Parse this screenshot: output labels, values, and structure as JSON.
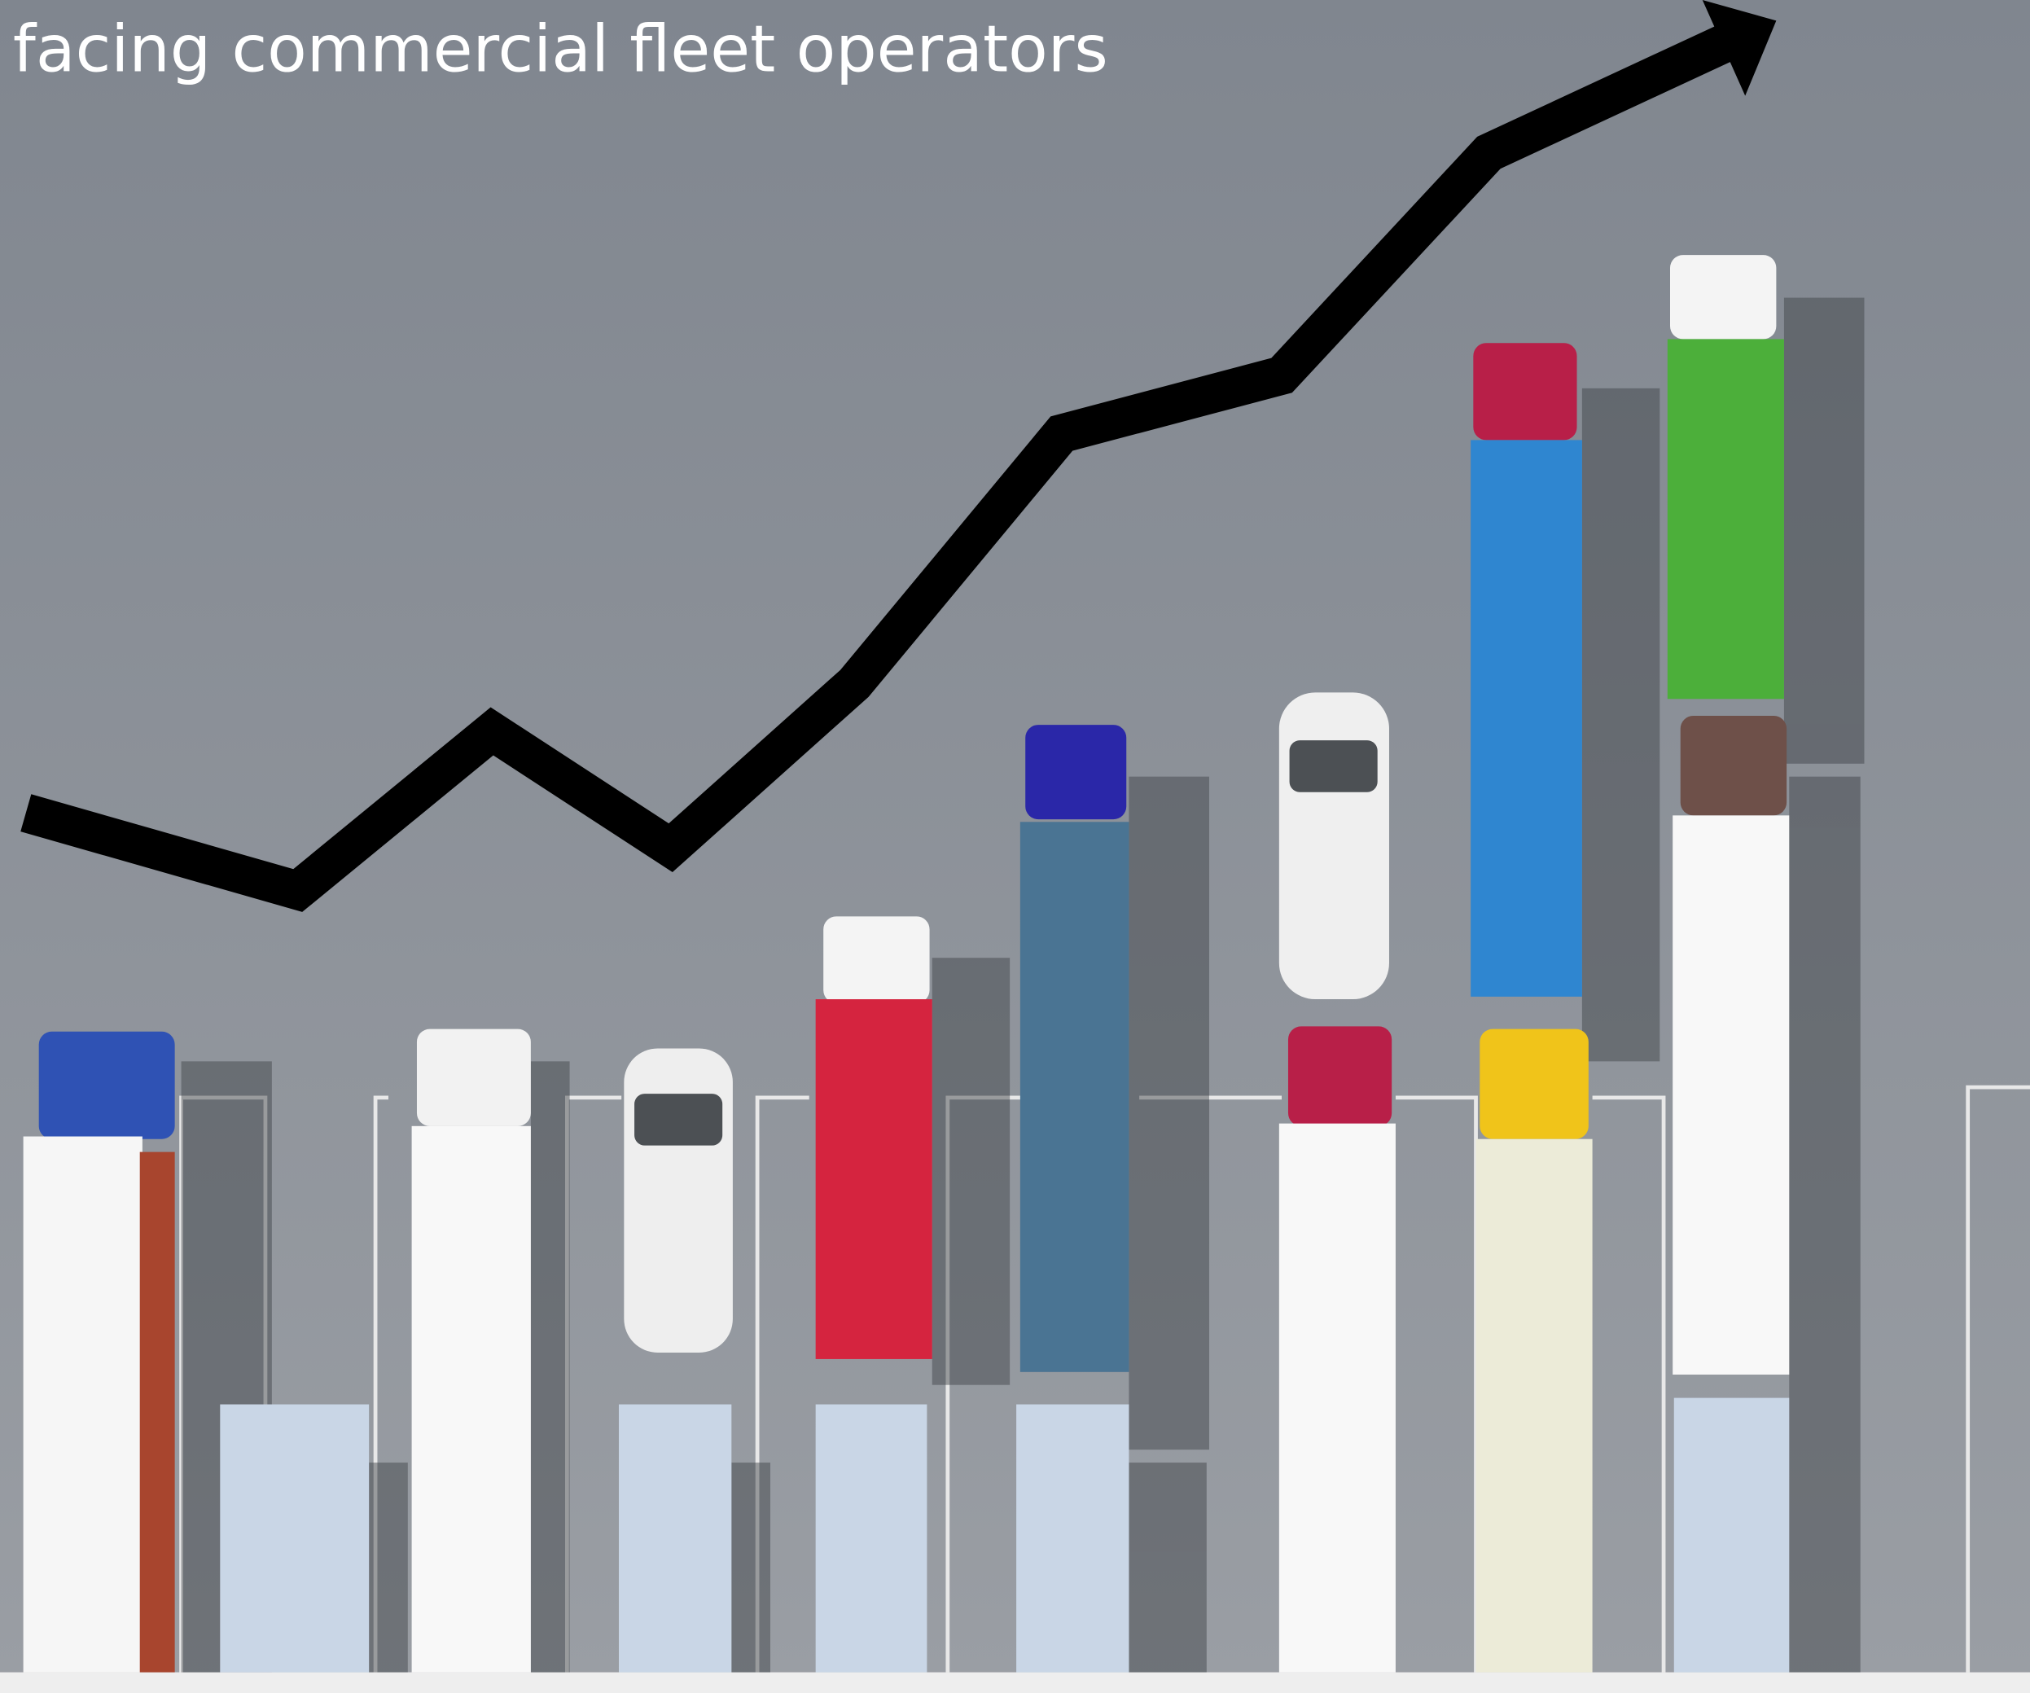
{
  "title": "facing commercial fleet operators"
}
